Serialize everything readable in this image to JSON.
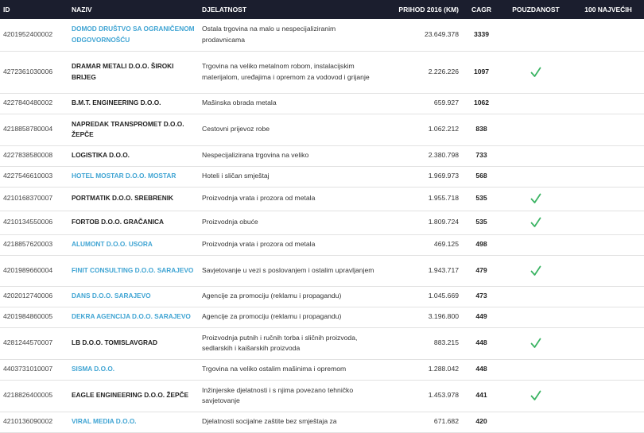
{
  "columns": {
    "id": "ID",
    "naziv": "NAZIV",
    "djelatnost": "DJELATNOST",
    "prihod": "PRIHOD 2016 (KM)",
    "cagr": "CAGR",
    "pouzdanost": "POUZDANOST",
    "najvecih": "100 NAJVEĆIH"
  },
  "colors": {
    "header_bg": "#1b1e2e",
    "link": "#3fa4d3",
    "check": "#3bb463"
  },
  "rows": [
    {
      "id": "4201952400002",
      "naziv": "DOMOD DRUŠTVO SA OGRANIČENOM ODGOVORNOŠĆU",
      "link": true,
      "djelatnost": "Ostala trgovina na malo u nespecijaliziranim prodavnicama",
      "prihod": "23.649.378",
      "cagr": "3339",
      "pouzdanost": false
    },
    {
      "id": "4272361030006",
      "naziv": "DRAMAR METALI D.O.O. ŠIROKI BRIJEG",
      "link": false,
      "djelatnost": "Trgovina na veliko metalnom robom, instalacijskim materijalom, uređajima i opremom za vodovod i grijanje",
      "prihod": "2.226.226",
      "cagr": "1097",
      "pouzdanost": true
    },
    {
      "id": "4227840480002",
      "naziv": "B.M.T. ENGINEERING D.O.O.",
      "link": false,
      "djelatnost": "Mašinska obrada metala",
      "prihod": "659.927",
      "cagr": "1062",
      "pouzdanost": false
    },
    {
      "id": "4218858780004",
      "naziv": "NAPREDAK TRANSPROMET D.O.O. ŽEPČE",
      "link": false,
      "djelatnost": "Cestovni prijevoz robe",
      "prihod": "1.062.212",
      "cagr": "838",
      "pouzdanost": false
    },
    {
      "id": "4227838580008",
      "naziv": "LOGISTIKA D.O.O.",
      "link": false,
      "djelatnost": "Nespecijalizirana trgovina na veliko",
      "prihod": "2.380.798",
      "cagr": "733",
      "pouzdanost": false
    },
    {
      "id": "4227546610003",
      "naziv": "HOTEL MOSTAR D.O.O. MOSTAR",
      "link": true,
      "djelatnost": "Hoteli i sličan smještaj",
      "prihod": "1.969.973",
      "cagr": "568",
      "pouzdanost": false
    },
    {
      "id": "4210168370007",
      "naziv": "PORTMATIK D.O.O. SREBRENIK",
      "link": false,
      "djelatnost": "Proizvodnja vrata i prozora od metala",
      "prihod": "1.955.718",
      "cagr": "535",
      "pouzdanost": true
    },
    {
      "id": "4210134550006",
      "naziv": "FORTOB D.O.O. GRAČANICA",
      "link": false,
      "djelatnost": "Proizvodnja obuće",
      "prihod": "1.809.724",
      "cagr": "535",
      "pouzdanost": true
    },
    {
      "id": "4218857620003",
      "naziv": "ALUMONT D.O.O. USORA",
      "link": true,
      "djelatnost": "Proizvodnja vrata i prozora od metala",
      "prihod": "469.125",
      "cagr": "498",
      "pouzdanost": false
    },
    {
      "id": "4201989660004",
      "naziv": "FINIT CONSULTING D.O.O. SARAJEVO",
      "link": true,
      "djelatnost": "Savjetovanje u vezi s poslovanjem i ostalim upravljanjem",
      "prihod": "1.943.717",
      "cagr": "479",
      "pouzdanost": true
    },
    {
      "id": "4202012740006",
      "naziv": "DANS D.O.O. SARAJEVO",
      "link": true,
      "djelatnost": "Agencije za promociju (reklamu i propagandu)",
      "prihod": "1.045.669",
      "cagr": "473",
      "pouzdanost": false
    },
    {
      "id": "4201984860005",
      "naziv": "DEKRA AGENCIJA D.O.O. SARAJEVO",
      "link": true,
      "djelatnost": "Agencije za promociju (reklamu i propagandu)",
      "prihod": "3.196.800",
      "cagr": "449",
      "pouzdanost": false
    },
    {
      "id": "4281244570007",
      "naziv": "LB D.O.O. TOMISLAVGRAD",
      "link": false,
      "djelatnost": "Proizvodnja putnih i ručnih torba i sličnih proizvoda, sedlarskih i kaišarskih proizvoda",
      "prihod": "883.215",
      "cagr": "448",
      "pouzdanost": true
    },
    {
      "id": "4403731010007",
      "naziv": "SISMA D.O.O.",
      "link": true,
      "djelatnost": "Trgovina na veliko ostalim mašinima i opremom",
      "prihod": "1.288.042",
      "cagr": "448",
      "pouzdanost": false
    },
    {
      "id": "4218826400005",
      "naziv": "EAGLE ENGINEERING D.O.O. ŽEPČE",
      "link": false,
      "djelatnost": "Inžinjerske djelatnosti i s njima povezano tehničko savjetovanje",
      "prihod": "1.453.978",
      "cagr": "441",
      "pouzdanost": true
    },
    {
      "id": "4210136090002",
      "naziv": "VIRAL MEDIA D.O.O.",
      "link": true,
      "djelatnost": "Djelatnosti socijalne zaštite bez smještaja za",
      "prihod": "671.682",
      "cagr": "420",
      "pouzdanost": false
    }
  ]
}
